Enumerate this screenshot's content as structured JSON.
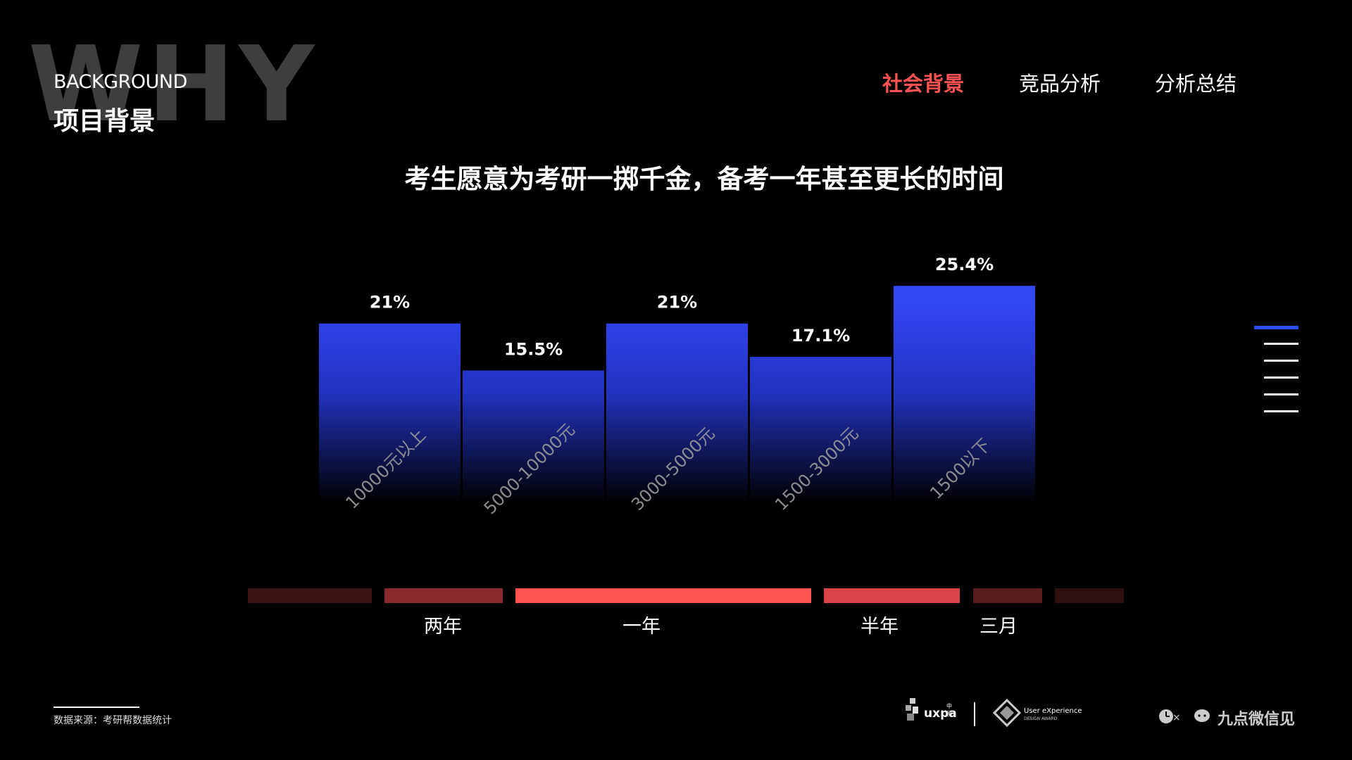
{
  "header": {
    "watermark": "WHY",
    "section_en": "BACKGROUND",
    "section_cn": "项目背景"
  },
  "nav": {
    "items": [
      "社会背景",
      "竞品分析",
      "分析总结"
    ],
    "active_index": 0
  },
  "headline": "考生愿意为考研一掷千金，备考一年甚至更长的时间",
  "chart_data": {
    "type": "bar",
    "categories": [
      "10000元以上",
      "5000-10000元",
      "3000-5000元",
      "1500-3000元",
      "1500以下"
    ],
    "values": [
      21,
      15.5,
      21,
      17.1,
      25.4
    ],
    "value_labels": [
      "21%",
      "15.5%",
      "21%",
      "17.1%",
      "25.4%"
    ],
    "ylim": [
      0,
      28
    ],
    "title": "",
    "xlabel": "",
    "ylabel": "",
    "grid": false,
    "colors": {
      "bar_top": "#3347f5",
      "bar_bottom": "#000000"
    }
  },
  "timeline": {
    "labels": [
      "两年",
      "一年",
      "半年",
      "三月"
    ],
    "segment_colors": [
      "#3d1414",
      "#8a2a2e",
      "#ff5252",
      "#d94448",
      "#5a1c1e",
      "#2e1010"
    ]
  },
  "side_indicator": {
    "count": 6,
    "active_index": 0,
    "active_color": "#2b4ef5"
  },
  "footer": {
    "source": "数据来源：考研帮数据统计",
    "logo_uxpa": "uxpa",
    "logo_uxpa_small": "中国",
    "logo_ux_award": "User eXperience",
    "logo_ux_award_small": "DESIGN AWARD",
    "logo_jiudian": "九点微信见"
  }
}
